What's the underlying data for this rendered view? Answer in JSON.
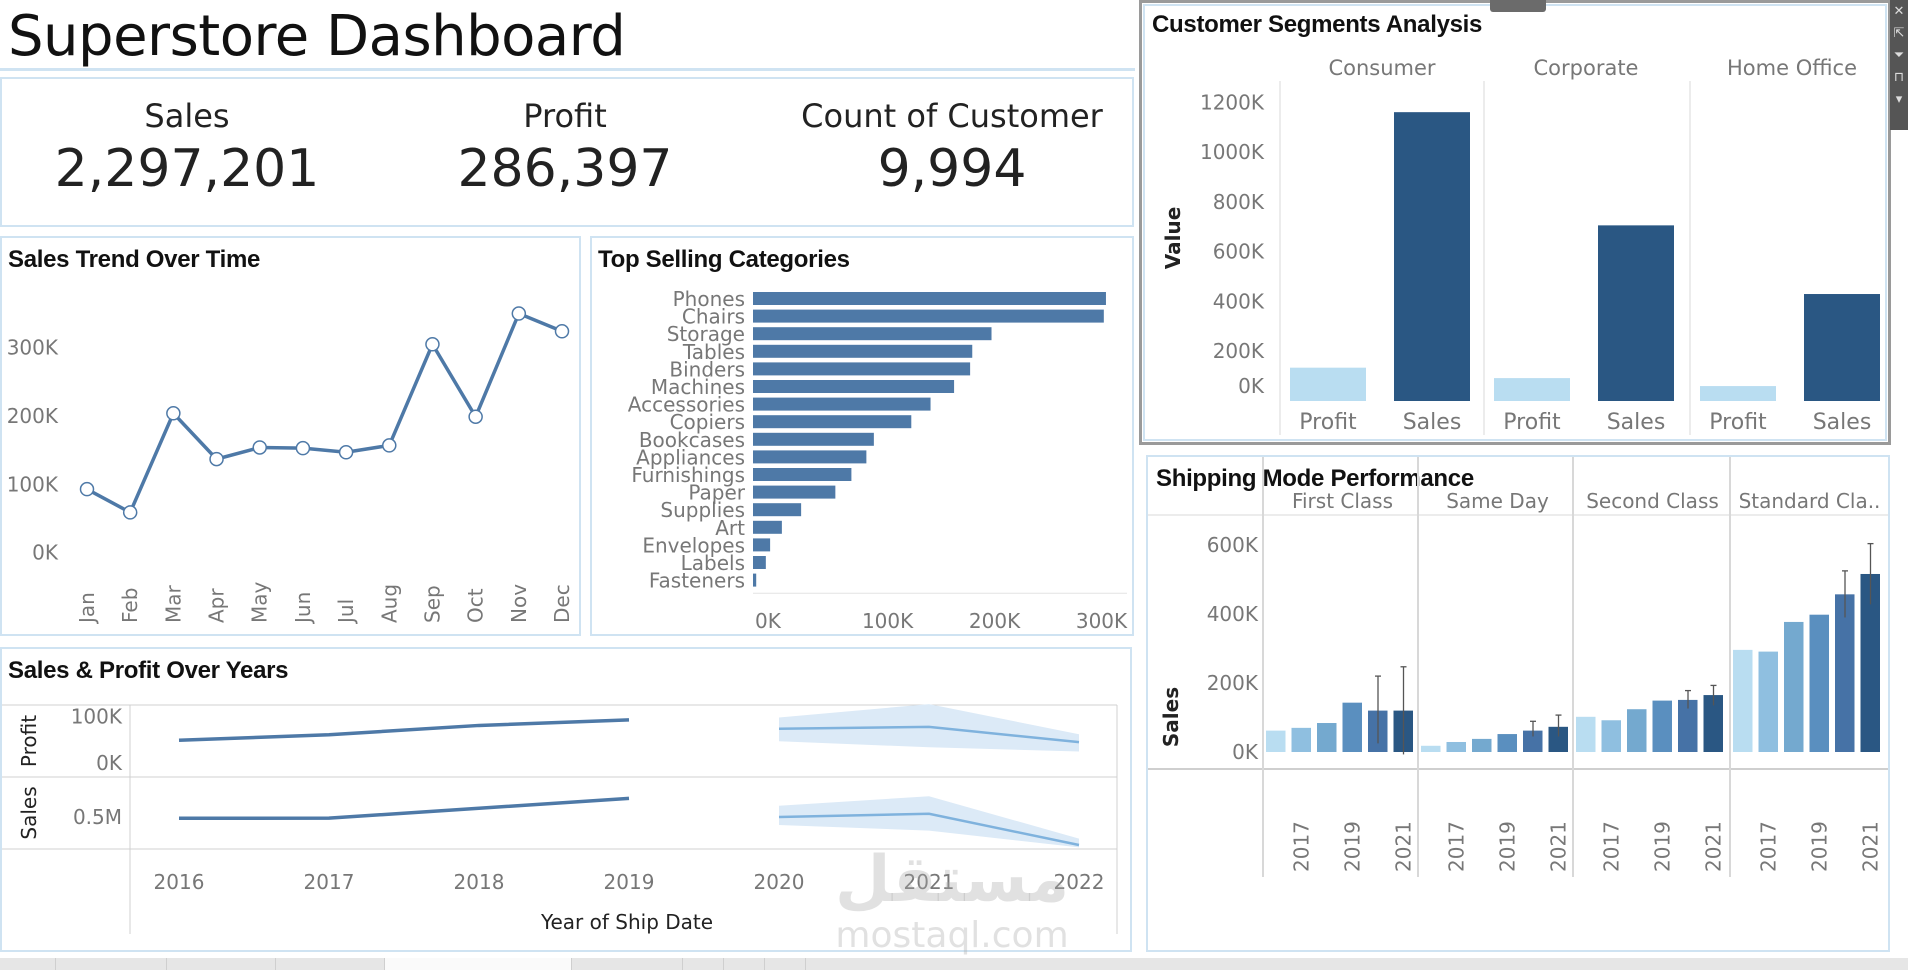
{
  "header": {
    "title": "Superstore Dashboard"
  },
  "kpis": [
    {
      "label": "Sales",
      "value": "2,297,201"
    },
    {
      "label": "Profit",
      "value": "286,397"
    },
    {
      "label": "Count of Customer",
      "value": "9,994"
    }
  ],
  "toolbar": {
    "icons": [
      "close-icon",
      "open-external-icon",
      "filter-icon",
      "pin-icon",
      "dropdown-icon"
    ],
    "glyphs": [
      "✕",
      "⇱",
      "⏷",
      "⊓",
      "▾"
    ]
  },
  "watermark": {
    "arabic": "مستقل",
    "latin": "mostaql.com"
  },
  "colors": {
    "dark_blue": "#2a5783",
    "mid_blue": "#4e79a7",
    "light_blue": "#b9ddf1",
    "panel_border": "#cfe3f2",
    "forecast_band": "#dceaf7",
    "forecast_line": "#7fb2dd"
  },
  "chart_data": [
    {
      "id": "sales_trend",
      "type": "line",
      "title": "Sales Trend Over Time",
      "categories": [
        "Jan",
        "Feb",
        "Mar",
        "Apr",
        "May",
        "Jun",
        "Jul",
        "Aug",
        "Sep",
        "Oct",
        "Nov",
        "Dec"
      ],
      "values": [
        93000,
        59000,
        204000,
        137000,
        154000,
        153000,
        147000,
        157000,
        305000,
        199000,
        350000,
        324000
      ],
      "yticks": [
        "0K",
        "100K",
        "200K",
        "300K"
      ],
      "ytick_values": [
        0,
        100000,
        200000,
        300000
      ],
      "ylim": [
        -15000,
        380000
      ],
      "xlabel": "",
      "ylabel": ""
    },
    {
      "id": "top_categories",
      "type": "bar",
      "orientation": "horizontal",
      "title": "Top Selling Categories",
      "categories": [
        "Phones",
        "Chairs",
        "Storage",
        "Tables",
        "Binders",
        "Machines",
        "Accessories",
        "Copiers",
        "Bookcases",
        "Appliances",
        "Furnishings",
        "Paper",
        "Supplies",
        "Art",
        "Envelopes",
        "Labels",
        "Fasteners"
      ],
      "values": [
        330000,
        328000,
        223000,
        205000,
        203000,
        188000,
        166000,
        148000,
        113000,
        106000,
        92000,
        77000,
        45000,
        27000,
        16000,
        12000,
        3000
      ],
      "xticks": [
        "0K",
        "100K",
        "200K",
        "300K"
      ],
      "xtick_values": [
        0,
        100000,
        200000,
        300000
      ],
      "xlim": [
        0,
        345000
      ]
    },
    {
      "id": "sales_profit_years",
      "type": "line",
      "title": "Sales & Profit Over Years",
      "xlabel": "Year of Ship Date",
      "x": [
        "2016",
        "2017",
        "2018",
        "2019",
        "2020",
        "2021",
        "2022"
      ],
      "panes": [
        {
          "name": "Profit",
          "yticks": [
            "100K",
            "0K"
          ],
          "ytick_values": [
            100000,
            0
          ],
          "ylim": [
            -30000,
            125000
          ],
          "actual": {
            "x": [
              "2016",
              "2017",
              "2018",
              "2019"
            ],
            "values": [
              49000,
              61000,
              81000,
              93000
            ]
          },
          "forecast": {
            "x": [
              "2020",
              "2021",
              "2022"
            ],
            "values": [
              74000,
              78000,
              45000
            ],
            "lower": [
              47000,
              34000,
              25000
            ],
            "upper": [
              98000,
              127000,
              62000
            ]
          }
        },
        {
          "name": "Sales",
          "yticks": [
            "0.5M"
          ],
          "ytick_values": [
            500000
          ],
          "ylim": [
            100000,
            1000000
          ],
          "actual": {
            "x": [
              "2016",
              "2017",
              "2018",
              "2019"
            ],
            "values": [
              484000,
              486000,
              609000,
              733000
            ]
          },
          "forecast": {
            "x": [
              "2020",
              "2021",
              "2022"
            ],
            "values": [
              500000,
              540000,
              150000
            ],
            "lower": [
              400000,
              330000,
              120000
            ],
            "upper": [
              640000,
              760000,
              230000
            ]
          }
        }
      ]
    },
    {
      "id": "customer_segments",
      "type": "bar",
      "title": "Customer Segments Analysis",
      "ylabel": "Value",
      "groups": [
        "Consumer",
        "Corporate",
        "Home Office"
      ],
      "categories": [
        "Profit",
        "Sales"
      ],
      "series": [
        {
          "name": "Profit",
          "values": [
            134000,
            92000,
            60000
          ],
          "color": "#b9ddf1"
        },
        {
          "name": "Sales",
          "values": [
            1161000,
            706000,
            430000
          ],
          "color": "#2a5783"
        }
      ],
      "yticks": [
        "0K",
        "200K",
        "400K",
        "600K",
        "800K",
        "1000K",
        "1200K"
      ],
      "ytick_values": [
        0,
        200000,
        400000,
        600000,
        800000,
        1000000,
        1200000
      ],
      "ylim": [
        0,
        1230000
      ]
    },
    {
      "id": "shipping_mode",
      "type": "bar",
      "title": "Shipping Mode Performance",
      "ylabel": "Sales",
      "groups": [
        "First Class",
        "Same Day",
        "Second Class",
        "Standard Cla.."
      ],
      "years": [
        "2016",
        "2017",
        "2018",
        "2019",
        "2020",
        "2021"
      ],
      "year_tick_labels": [
        "2017",
        "2019",
        "2021"
      ],
      "values": [
        [
          62000,
          70000,
          84000,
          143000,
          120000,
          120000
        ],
        [
          18000,
          29000,
          38000,
          52000,
          62000,
          73000
        ],
        [
          102000,
          92000,
          124000,
          149000,
          151000,
          165000
        ],
        [
          296000,
          291000,
          377000,
          398000,
          457000,
          516000
        ]
      ],
      "error_bars": [
        [
          null,
          null,
          null,
          null,
          [
            25000,
            220000
          ],
          [
            -7000,
            247000
          ]
        ],
        [
          null,
          null,
          null,
          null,
          [
            45000,
            89000
          ],
          [
            45000,
            107000
          ]
        ],
        [
          null,
          null,
          null,
          null,
          [
            126000,
            178000
          ],
          [
            135000,
            193000
          ]
        ],
        [
          null,
          null,
          null,
          null,
          [
            390000,
            525000
          ],
          [
            428000,
            604000
          ]
        ]
      ],
      "year_colors": [
        "#b9ddf1",
        "#8fbfe0",
        "#74a9cf",
        "#5a8fbf",
        "#4672a6",
        "#2a5783"
      ],
      "yticks": [
        "0K",
        "200K",
        "400K",
        "600K"
      ],
      "ytick_values": [
        0,
        200000,
        400000,
        600000
      ],
      "ylim": [
        -30000,
        660000
      ]
    }
  ]
}
